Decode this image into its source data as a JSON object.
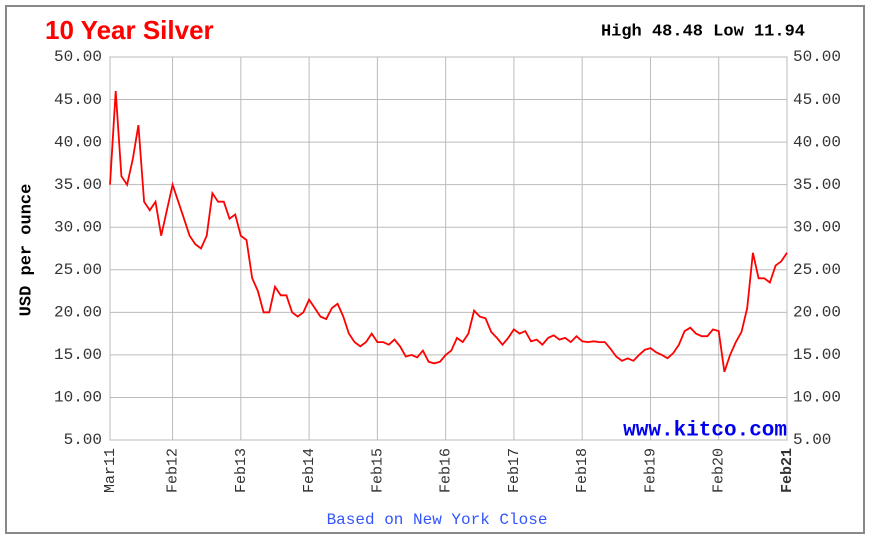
{
  "chart_data": {
    "type": "line",
    "title": "10 Year Silver",
    "annotation": "High 48.48 Low 11.94",
    "ylabel": "USD per ounce",
    "xlabel": "Based on New York Close",
    "watermark": "www.kitco.com",
    "color": "#ff0000",
    "grid": true,
    "x": [
      "2011-03",
      "2011-04",
      "2011-05",
      "2011-06",
      "2011-07",
      "2011-08",
      "2011-09",
      "2011-10",
      "2011-11",
      "2011-12",
      "2012-01",
      "2012-02",
      "2012-03",
      "2012-04",
      "2012-05",
      "2012-06",
      "2012-07",
      "2012-08",
      "2012-09",
      "2012-10",
      "2012-11",
      "2012-12",
      "2013-01",
      "2013-02",
      "2013-03",
      "2013-04",
      "2013-05",
      "2013-06",
      "2013-07",
      "2013-08",
      "2013-09",
      "2013-10",
      "2013-11",
      "2013-12",
      "2014-01",
      "2014-02",
      "2014-03",
      "2014-04",
      "2014-05",
      "2014-06",
      "2014-07",
      "2014-08",
      "2014-09",
      "2014-10",
      "2014-11",
      "2014-12",
      "2015-01",
      "2015-02",
      "2015-03",
      "2015-04",
      "2015-05",
      "2015-06",
      "2015-07",
      "2015-08",
      "2015-09",
      "2015-10",
      "2015-11",
      "2015-12",
      "2016-01",
      "2016-02",
      "2016-03",
      "2016-04",
      "2016-05",
      "2016-06",
      "2016-07",
      "2016-08",
      "2016-09",
      "2016-10",
      "2016-11",
      "2016-12",
      "2017-01",
      "2017-02",
      "2017-03",
      "2017-04",
      "2017-05",
      "2017-06",
      "2017-07",
      "2017-08",
      "2017-09",
      "2017-10",
      "2017-11",
      "2017-12",
      "2018-01",
      "2018-02",
      "2018-03",
      "2018-04",
      "2018-05",
      "2018-06",
      "2018-07",
      "2018-08",
      "2018-09",
      "2018-10",
      "2018-11",
      "2018-12",
      "2019-01",
      "2019-02",
      "2019-03",
      "2019-04",
      "2019-05",
      "2019-06",
      "2019-07",
      "2019-08",
      "2019-09",
      "2019-10",
      "2019-11",
      "2019-12",
      "2020-01",
      "2020-02",
      "2020-03",
      "2020-04",
      "2020-05",
      "2020-06",
      "2020-07",
      "2020-08",
      "2020-09",
      "2020-10",
      "2020-11",
      "2020-12",
      "2021-01",
      "2021-02"
    ],
    "values": [
      35,
      46,
      36,
      35,
      38,
      42,
      33,
      32,
      33,
      29,
      32,
      35,
      33,
      31,
      29,
      28,
      27.5,
      29,
      34,
      33,
      33,
      31,
      31.5,
      29,
      28.5,
      24,
      22.5,
      20,
      20,
      23,
      22,
      22,
      20,
      19.5,
      20,
      21.5,
      20.5,
      19.5,
      19.2,
      20.5,
      21,
      19.5,
      17.5,
      16.5,
      16,
      16.5,
      17.5,
      16.5,
      16.5,
      16.2,
      16.8,
      16,
      14.8,
      15,
      14.7,
      15.5,
      14.2,
      14,
      14.2,
      15,
      15.5,
      17,
      16.5,
      17.5,
      20.2,
      19.5,
      19.3,
      17.7,
      17,
      16.2,
      17,
      18,
      17.5,
      17.8,
      16.6,
      16.8,
      16.2,
      17,
      17.3,
      16.8,
      17,
      16.5,
      17.2,
      16.6,
      16.5,
      16.6,
      16.5,
      16.5,
      15.7,
      14.8,
      14.3,
      14.6,
      14.3,
      15,
      15.6,
      15.8,
      15.3,
      15,
      14.6,
      15.2,
      16.2,
      17.8,
      18.2,
      17.5,
      17.2,
      17.2,
      18,
      17.8,
      13,
      15,
      16.5,
      17.7,
      20.5,
      27,
      24,
      24,
      23.5,
      25.5,
      26,
      27
    ],
    "xlim": [
      "2011-03",
      "2021-02"
    ],
    "xticks": [
      {
        "value": "2011-03",
        "label": "Mar11"
      },
      {
        "value": "2012-02",
        "label": "Feb12"
      },
      {
        "value": "2013-02",
        "label": "Feb13"
      },
      {
        "value": "2014-02",
        "label": "Feb14"
      },
      {
        "value": "2015-02",
        "label": "Feb15"
      },
      {
        "value": "2016-02",
        "label": "Feb16"
      },
      {
        "value": "2017-02",
        "label": "Feb17"
      },
      {
        "value": "2018-02",
        "label": "Feb18"
      },
      {
        "value": "2019-02",
        "label": "Feb19"
      },
      {
        "value": "2020-02",
        "label": "Feb20"
      },
      {
        "value": "2021-02",
        "label": "Feb21"
      }
    ],
    "ylim": [
      5,
      50
    ],
    "yticks": [
      {
        "value": 5,
        "label": "5.00"
      },
      {
        "value": 10,
        "label": "10.00"
      },
      {
        "value": 15,
        "label": "15.00"
      },
      {
        "value": 20,
        "label": "20.00"
      },
      {
        "value": 25,
        "label": "25.00"
      },
      {
        "value": 30,
        "label": "30.00"
      },
      {
        "value": 35,
        "label": "35.00"
      },
      {
        "value": 40,
        "label": "40.00"
      },
      {
        "value": 45,
        "label": "45.00"
      },
      {
        "value": 50,
        "label": "50.00"
      }
    ]
  }
}
